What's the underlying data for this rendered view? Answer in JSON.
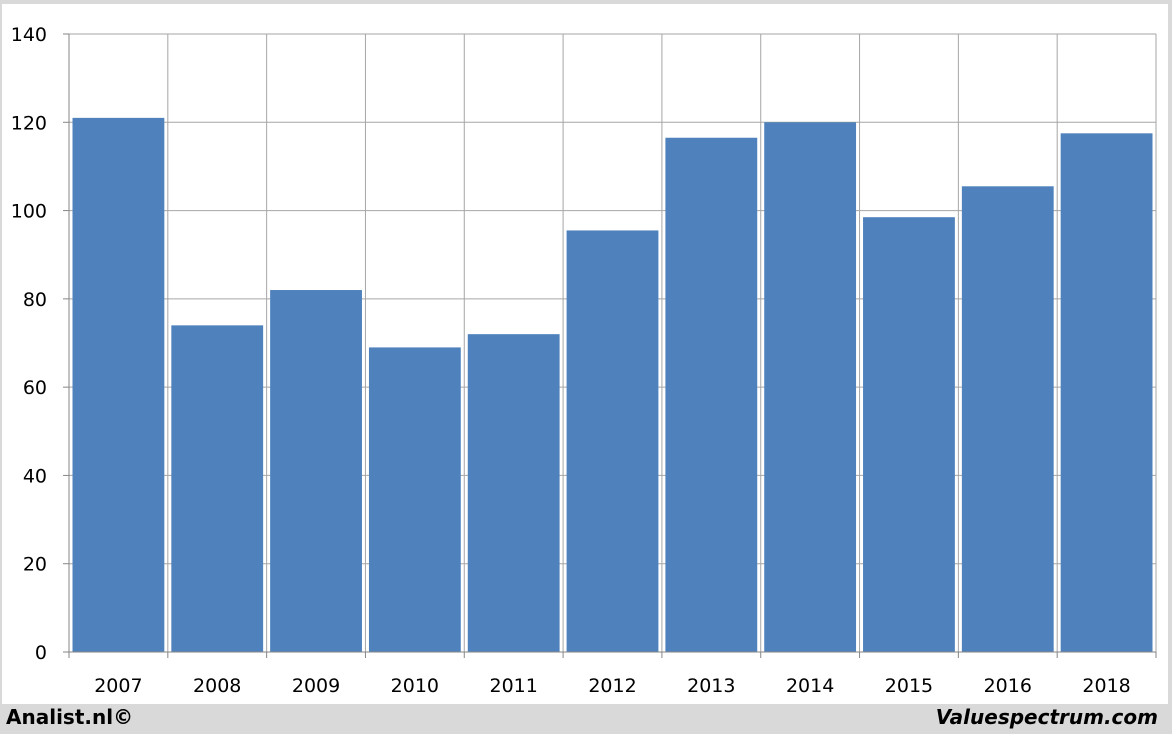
{
  "chart_data": {
    "type": "bar",
    "title": "",
    "xlabel": "",
    "ylabel": "",
    "categories": [
      "2007",
      "2008",
      "2009",
      "2010",
      "2011",
      "2012",
      "2013",
      "2014",
      "2015",
      "2016",
      "2018"
    ],
    "values": [
      121,
      74,
      82,
      69,
      72,
      95.5,
      116.5,
      120,
      98.5,
      105.5,
      117.5
    ],
    "ylim": [
      0,
      140
    ],
    "yticks": [
      0,
      20,
      40,
      60,
      80,
      100,
      120,
      140
    ],
    "grid": true,
    "legend": "none",
    "bar_color": "#4f81bd",
    "grid_color": "#a6a6a6"
  },
  "footer": {
    "left_text": "Analist.nl©",
    "right_text": "Valuespectrum.com"
  }
}
